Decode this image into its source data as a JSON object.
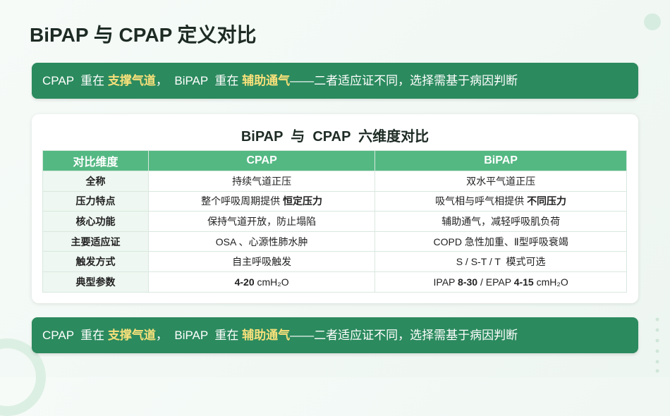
{
  "title": "BiPAP 与 CPAP 定义对比",
  "banners": [
    [
      {
        "text": "CPAP  重在 ",
        "bold": false
      },
      {
        "text": "支撑气道",
        "bold": true
      },
      {
        "text": "，  BiPAP  重在 ",
        "bold": false
      },
      {
        "text": "辅助通气",
        "bold": true
      },
      {
        "text": "——二者适应证不同，选择需基于病因判断",
        "bold": false
      }
    ],
    [
      {
        "text": "CPAP  重在 ",
        "bold": false
      },
      {
        "text": "支撑气道",
        "bold": true
      },
      {
        "text": "，  BiPAP  重在 ",
        "bold": false
      },
      {
        "text": "辅助通气",
        "bold": true
      },
      {
        "text": "——二者适应证不同，选择需基于病因判断",
        "bold": false
      }
    ]
  ],
  "table": {
    "title": "BiPAP  与  CPAP  六维度对比",
    "header": [
      "对比维度",
      "CPAP",
      "BiPAP"
    ],
    "rows": [
      [
        "全称",
        [
          {
            "text": "持续气道正压",
            "bold": false
          }
        ],
        [
          {
            "text": "双水平气道正压",
            "bold": false
          }
        ]
      ],
      [
        "压力特点",
        [
          {
            "text": "整个呼吸周期提供 ",
            "bold": false
          },
          {
            "text": "恒定压力",
            "bold": true
          }
        ],
        [
          {
            "text": "吸气相与呼气相提供 ",
            "bold": false
          },
          {
            "text": "不同压力",
            "bold": true
          }
        ]
      ],
      [
        "核心功能",
        [
          {
            "text": "保持气道开放，防止塌陷",
            "bold": false
          }
        ],
        [
          {
            "text": "辅助通气，减轻呼吸肌负荷",
            "bold": false
          }
        ]
      ],
      [
        "主要适应证",
        [
          {
            "text": "OSA 、心源性肺水肿",
            "bold": false
          }
        ],
        [
          {
            "text": "COPD 急性加重、Ⅱ型呼吸衰竭",
            "bold": false
          }
        ]
      ],
      [
        "触发方式",
        [
          {
            "text": "自主呼吸触发",
            "bold": false
          }
        ],
        [
          {
            "text": "S / S-T / T  模式可选",
            "bold": false
          }
        ]
      ],
      [
        "典型参数",
        [
          {
            "text": "4-20",
            "bold": true
          },
          {
            "text": " cmH₂O",
            "bold": false
          }
        ],
        [
          {
            "text": "IPAP ",
            "bold": false
          },
          {
            "text": "8-30",
            "bold": true
          },
          {
            "text": " / EPAP ",
            "bold": false
          },
          {
            "text": "4-15",
            "bold": true
          },
          {
            "text": " cmH₂O",
            "bold": false
          }
        ]
      ]
    ]
  }
}
